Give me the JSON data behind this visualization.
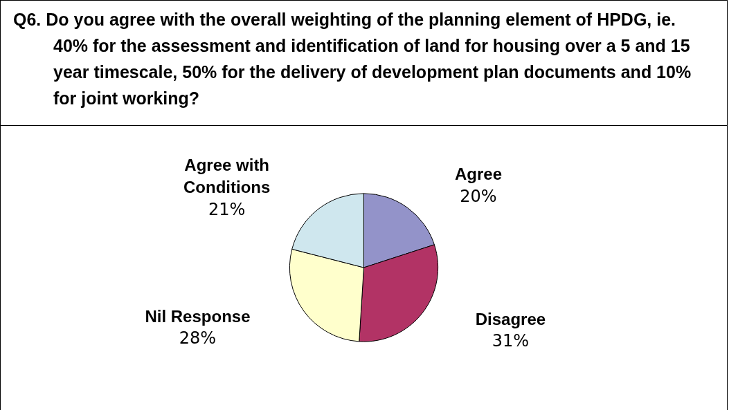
{
  "chart_data": {
    "type": "pie",
    "title": "Q6.  Do you agree with the overall weighting of the planning element of HPDG, ie. 40% for the assessment and identification of land for housing over a 5 and 15 year timescale, 50% for the delivery of development plan documents and 10% for joint working?",
    "categories": [
      "Agree",
      "Disagree",
      "Nil Response",
      "Agree with Conditions"
    ],
    "values": [
      20,
      31,
      28,
      21
    ],
    "value_labels": [
      "20%",
      "31%",
      "28%",
      "21%"
    ],
    "colors": [
      "#9393c9",
      "#b23365",
      "#ffffcc",
      "#cfe7ee"
    ]
  }
}
